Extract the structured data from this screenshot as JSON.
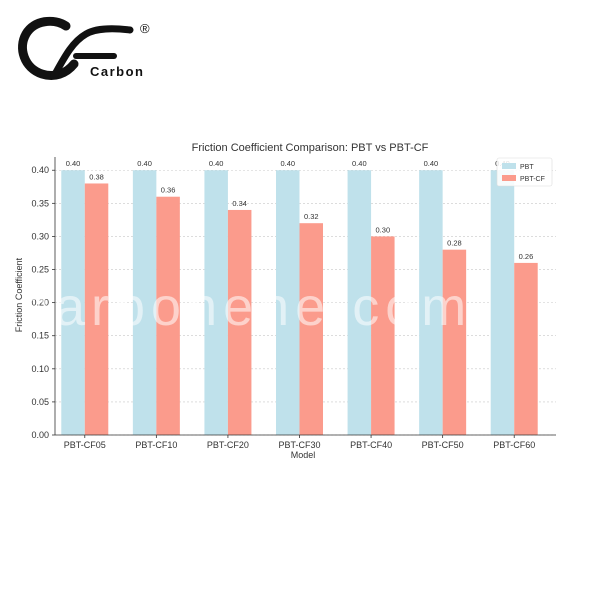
{
  "logo": {
    "text": "Carbon",
    "mark": "CF",
    "reg_mark": "®"
  },
  "watermark": "carbonene.com",
  "chart_data": {
    "type": "bar",
    "title": "Friction Coefficient Comparison: PBT vs PBT-CF",
    "xlabel": "Model",
    "ylabel": "Friction Coefficient",
    "categories": [
      "PBT-CF05",
      "PBT-CF10",
      "PBT-CF20",
      "PBT-CF30",
      "PBT-CF40",
      "PBT-CF50",
      "PBT-CF60"
    ],
    "series": [
      {
        "name": "PBT",
        "values": [
          0.4,
          0.4,
          0.4,
          0.4,
          0.4,
          0.4,
          0.4
        ],
        "labels": [
          "0.40",
          "0.40",
          "0.40",
          "0.40",
          "0.40",
          "0.40",
          "0.40"
        ],
        "color": "#bfe1eb"
      },
      {
        "name": "PBT-CF",
        "values": [
          0.38,
          0.36,
          0.34,
          0.32,
          0.3,
          0.28,
          0.26
        ],
        "labels": [
          "0.38",
          "0.36",
          "0.34",
          "0.32",
          "0.30",
          "0.28",
          "0.26"
        ],
        "color": "#fb9b8c"
      }
    ],
    "ylim": [
      0,
      0.42
    ],
    "yticks": [
      "0.00",
      "0.05",
      "0.10",
      "0.15",
      "0.20",
      "0.25",
      "0.30",
      "0.35",
      "0.40"
    ],
    "grid": true,
    "legend": "top-right"
  }
}
